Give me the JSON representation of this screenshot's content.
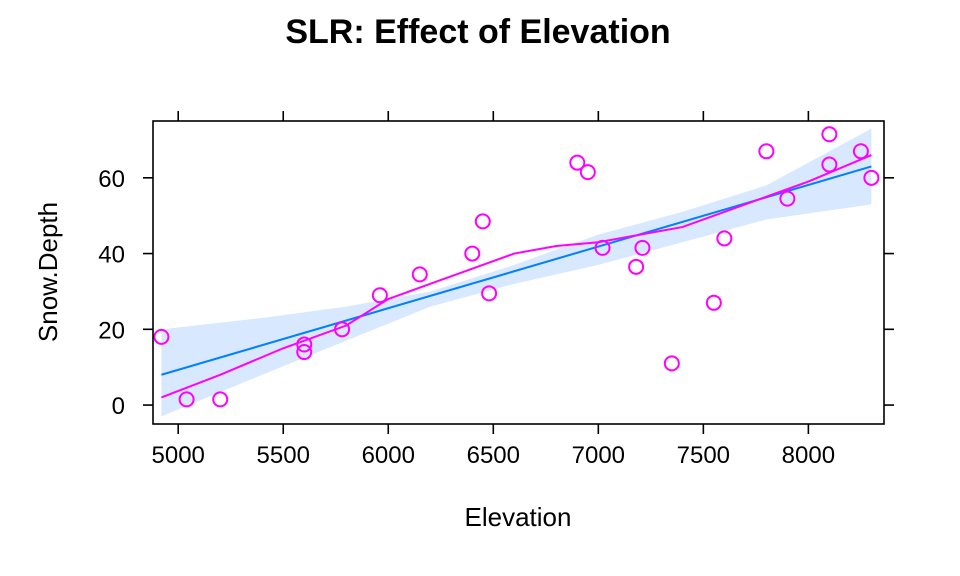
{
  "chart_data": {
    "type": "scatter",
    "title": "SLR: Effect of Elevation",
    "xlabel": "Elevation",
    "ylabel": "Snow.Depth",
    "xlim": [
      4880,
      8360
    ],
    "ylim": [
      -5,
      75
    ],
    "xticks": [
      5000,
      5500,
      6000,
      6500,
      7000,
      7500,
      8000
    ],
    "yticks": [
      0,
      20,
      40,
      60
    ],
    "grid": false,
    "legend": "none",
    "colors": {
      "points": "#ff00ff",
      "regression_line": "#0080ff",
      "confidence_band": "#d8e8ff",
      "smooth_line": "#ff00ff"
    },
    "points": [
      {
        "x": 4920,
        "y": 18
      },
      {
        "x": 5040,
        "y": 1.5
      },
      {
        "x": 5200,
        "y": 1.5
      },
      {
        "x": 5600,
        "y": 16
      },
      {
        "x": 5600,
        "y": 14
      },
      {
        "x": 5780,
        "y": 20
      },
      {
        "x": 5960,
        "y": 29
      },
      {
        "x": 6150,
        "y": 34.5
      },
      {
        "x": 6400,
        "y": 40
      },
      {
        "x": 6450,
        "y": 48.5
      },
      {
        "x": 6480,
        "y": 29.5
      },
      {
        "x": 6900,
        "y": 64
      },
      {
        "x": 6950,
        "y": 61.5
      },
      {
        "x": 7020,
        "y": 41.5
      },
      {
        "x": 7180,
        "y": 36.5
      },
      {
        "x": 7210,
        "y": 41.5
      },
      {
        "x": 7350,
        "y": 11
      },
      {
        "x": 7550,
        "y": 27
      },
      {
        "x": 7600,
        "y": 44
      },
      {
        "x": 7800,
        "y": 67
      },
      {
        "x": 7900,
        "y": 54.5
      },
      {
        "x": 8100,
        "y": 71.5
      },
      {
        "x": 8100,
        "y": 63.5
      },
      {
        "x": 8250,
        "y": 67
      },
      {
        "x": 8300,
        "y": 60
      }
    ],
    "regression_line": {
      "x": [
        4920,
        8300
      ],
      "y": [
        8,
        63
      ]
    },
    "confidence_band": {
      "x": [
        4920,
        5400,
        5800,
        6200,
        6600,
        7000,
        7400,
        7800,
        8300
      ],
      "upper": [
        20,
        23,
        26,
        30,
        37,
        45,
        51,
        58,
        73
      ],
      "lower": [
        -3,
        8,
        17,
        26,
        32,
        37,
        43,
        49,
        53
      ]
    },
    "smooth_line": {
      "x": [
        4920,
        5200,
        5500,
        5800,
        6000,
        6200,
        6400,
        6600,
        6800,
        7000,
        7200,
        7400,
        7600,
        7800,
        8000,
        8300
      ],
      "y": [
        2,
        8,
        15,
        21,
        28,
        32,
        36,
        40,
        42,
        43,
        45,
        47,
        51,
        55,
        59,
        66
      ]
    }
  }
}
